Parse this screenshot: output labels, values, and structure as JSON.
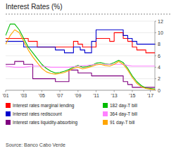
{
  "chart_data": {
    "type": "line",
    "title": "Interest Rates (%)",
    "source": "Source: Banco Cabo Verde",
    "xlim": [
      2001,
      2017.5
    ],
    "xticks": [
      {
        "value": 2001,
        "label": "'01"
      },
      {
        "value": 2003,
        "label": "'03"
      },
      {
        "value": 2005,
        "label": "'05"
      },
      {
        "value": 2007,
        "label": "'07"
      },
      {
        "value": 2009,
        "label": "'09"
      },
      {
        "value": 2011,
        "label": "'11"
      },
      {
        "value": 2013,
        "label": "'13"
      },
      {
        "value": 2015,
        "label": "'15"
      },
      {
        "value": 2017,
        "label": "'17"
      }
    ],
    "ylim": [
      0,
      12
    ],
    "yticks": [
      0,
      2,
      4,
      6,
      8,
      10,
      12
    ],
    "grid": true,
    "legend": "bottom",
    "series": [
      {
        "name": "Interest rates marginal lending",
        "color": "#ff0000",
        "x": [
          2001,
          2003.5,
          2003.5,
          2004.5,
          2004.5,
          2008.5,
          2008.5,
          2009,
          2009,
          2009.5,
          2009.5,
          2011,
          2011,
          2012.5,
          2012.5,
          2013,
          2013,
          2014,
          2014,
          2014.5,
          2014.5,
          2015,
          2015,
          2015.5,
          2015.5,
          2016.5,
          2016.5,
          2017.5
        ],
        "values": [
          9,
          9,
          8.5,
          8.5,
          7.5,
          7.5,
          8.5,
          8.5,
          8,
          8,
          7.5,
          7.5,
          9,
          9,
          8.5,
          8.5,
          10,
          10,
          9,
          9,
          8.5,
          8.5,
          7.5,
          7.5,
          7,
          7,
          6.5,
          6.5
        ]
      },
      {
        "name": "Interest rates rediscount",
        "color": "#0000cd",
        "x": [
          2001,
          2003,
          2003,
          2006.5,
          2006.5,
          2007.5,
          2007.5,
          2008.5,
          2008.5,
          2009.25,
          2009.25,
          2009.75,
          2009.75,
          2010.5,
          2010.5,
          2011,
          2011,
          2014,
          2014,
          2014.5,
          2014.5,
          2015,
          2015,
          2015.5,
          2015.5,
          2017.5
        ],
        "values": [
          8.5,
          8.5,
          7.5,
          7.5,
          7,
          7,
          6.5,
          6.5,
          7.5,
          7.5,
          7,
          7,
          6.5,
          6.5,
          8.5,
          8.5,
          10.5,
          10.5,
          9.5,
          9.5,
          9,
          9,
          8.5,
          8.5,
          8,
          8
        ]
      },
      {
        "name": "Interest rates liquidity-absorbing",
        "color": "#800080",
        "x": [
          2001,
          2002,
          2002,
          2003,
          2003,
          2004,
          2004,
          2006.5,
          2006.5,
          2008,
          2008,
          2009,
          2009,
          2010.5,
          2010.5,
          2014,
          2014,
          2014.5,
          2014.5,
          2015,
          2015,
          2017.5
        ],
        "values": [
          4.5,
          4.5,
          5,
          5,
          4.5,
          4.5,
          2,
          2,
          1.5,
          1.5,
          3.5,
          3.5,
          3,
          3,
          2.5,
          2.5,
          1.5,
          1.5,
          1,
          1,
          0.5,
          0.5
        ]
      },
      {
        "name": "182 day-T bill",
        "color": "#00bb00",
        "x": [
          2001,
          2001.5,
          2002,
          2002.5,
          2003,
          2003.5,
          2004,
          2004.5,
          2005,
          2005.5,
          2006,
          2006.5,
          2007,
          2007.5,
          2008,
          2008.5,
          2009,
          2009.5,
          2010,
          2010.5,
          2011,
          2011.5,
          2012,
          2012.5,
          2013,
          2013.5,
          2014,
          2014.5,
          2015,
          2015.5,
          2016,
          2016.5,
          2017,
          2017.5
        ],
        "values": [
          9.5,
          11.5,
          11.5,
          10.5,
          9.0,
          7.5,
          6.5,
          5.5,
          4.5,
          3.8,
          3.3,
          3.0,
          3.1,
          3.3,
          3.6,
          4.0,
          4.3,
          4.0,
          4.1,
          4.3,
          4.7,
          4.8,
          4.6,
          4.5,
          4.8,
          5.2,
          4.8,
          3.8,
          2.5,
          1.5,
          0.8,
          0.4,
          0.3,
          0.2
        ]
      },
      {
        "name": "364 day-T bill",
        "color": "#ff80ff",
        "x": [
          2001,
          2002,
          2003,
          2004,
          2005,
          2006,
          2007,
          2008,
          2009,
          2010,
          2011,
          2012,
          2013,
          2014,
          2014.5,
          2015,
          2015.5,
          2016,
          2016.5,
          2017,
          2017.5
        ],
        "values": [
          4.2,
          4.0,
          4.0,
          4.2,
          4.2,
          4.0,
          4.0,
          4.0,
          4.2,
          4.3,
          4.5,
          4.5,
          4.5,
          4.5,
          4.3,
          4.2,
          4.2,
          4.2,
          4.2,
          4.2,
          4.2
        ]
      },
      {
        "name": "91 day-T bill",
        "color": "#ffa500",
        "x": [
          2001,
          2001.5,
          2002,
          2002.5,
          2003,
          2003.5,
          2004,
          2004.5,
          2005,
          2005.5,
          2006,
          2006.5,
          2007,
          2007.5,
          2008,
          2008.5,
          2009,
          2009.5,
          2010,
          2010.5,
          2011,
          2011.5,
          2012,
          2012.5,
          2013,
          2013.5,
          2014,
          2014.5,
          2015,
          2015.5,
          2016,
          2016.5,
          2017,
          2017.5
        ],
        "values": [
          8.0,
          9.5,
          10.5,
          10.0,
          8.5,
          7.0,
          5.8,
          4.8,
          3.8,
          3.2,
          2.9,
          2.8,
          2.9,
          3.1,
          3.4,
          3.8,
          4.0,
          3.7,
          3.9,
          4.1,
          4.4,
          4.5,
          4.3,
          4.2,
          4.5,
          5.0,
          4.5,
          3.5,
          2.2,
          1.2,
          0.6,
          0.3,
          0.2,
          0.1
        ]
      }
    ]
  }
}
